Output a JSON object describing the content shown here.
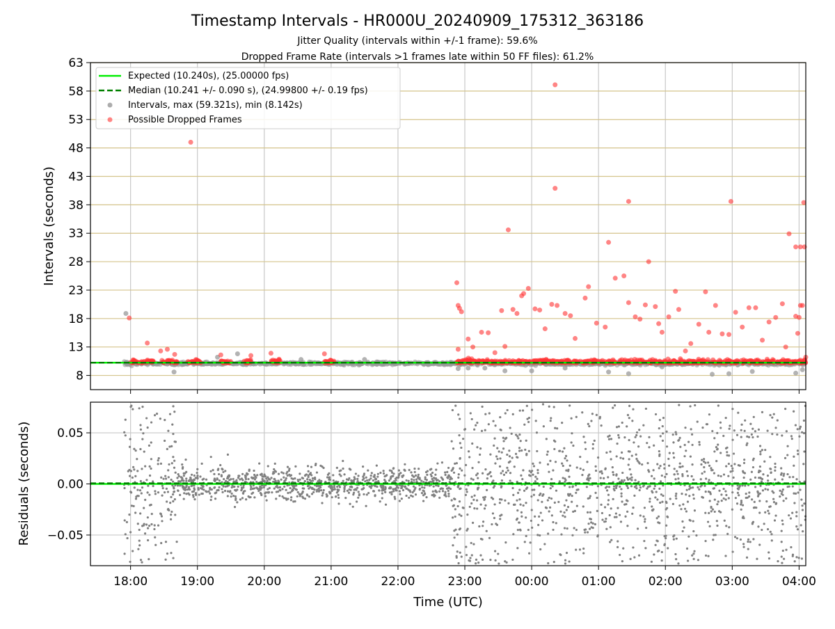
{
  "figure": {
    "title": "Timestamp Intervals - HR000U_20240909_175312_363186",
    "subtitle1": "Jitter Quality (intervals within +/-1 frame): 59.6%",
    "subtitle2": "Dropped Frame Rate (intervals >1 frames late within 50 FF files): 61.2%"
  },
  "chart_data": [
    {
      "type": "scatter",
      "title": "Timestamp Intervals - HR000U_20240909_175312_363186",
      "xlabel": "",
      "ylabel": "Intervals (seconds)",
      "xlim_hours": [
        17.4,
        28.1
      ],
      "ylim": [
        5.5,
        63
      ],
      "yticks": [
        8,
        13,
        18,
        23,
        28,
        33,
        38,
        43,
        48,
        53,
        58,
        63
      ],
      "xticks_hours": [
        18,
        19,
        20,
        21,
        22,
        23,
        24,
        25,
        26,
        27,
        28
      ],
      "xtick_labels": [
        "18:00",
        "19:00",
        "20:00",
        "21:00",
        "22:00",
        "23:00",
        "00:00",
        "01:00",
        "02:00",
        "03:00",
        "04:00"
      ],
      "grid": true,
      "legend_position": "top-left",
      "colors": {
        "expected": "#00ee00",
        "median": "#008000",
        "intervals": "#999999",
        "dropped": "#ff3333",
        "hgrid": "#d4c38a",
        "vgrid": "#c8c8c8"
      },
      "legend": [
        {
          "label": "Expected (10.240s), (25.00000 fps)",
          "kind": "solid-line",
          "color": "#00ee00"
        },
        {
          "label": "Median (10.241 +/- 0.090 s), (24.99800 +/- 0.19 fps)",
          "kind": "dashed-line",
          "color": "#008000"
        },
        {
          "label": "Intervals, max (59.321s), min (8.142s)",
          "kind": "marker",
          "color": "#999999"
        },
        {
          "label": "Possible Dropped Frames",
          "kind": "marker",
          "color": "#ff3333"
        }
      ],
      "expected_interval": 10.24,
      "median_interval": 10.241,
      "series": [
        {
          "name": "Intervals, max (59.321s), min (8.142s)",
          "points": [
            [
              17.93,
              18.9
            ],
            [
              18.55,
              10.0
            ],
            [
              18.65,
              8.6
            ],
            [
              19.3,
              11.2
            ],
            [
              19.6,
              11.8
            ],
            [
              20.3,
              10.2
            ],
            [
              20.55,
              10.8
            ],
            [
              21.5,
              10.8
            ],
            [
              22.9,
              9.2
            ],
            [
              23.05,
              9.3
            ],
            [
              23.3,
              9.3
            ],
            [
              23.6,
              8.8
            ],
            [
              24.0,
              8.8
            ],
            [
              24.5,
              9.3
            ],
            [
              25.15,
              8.6
            ],
            [
              25.45,
              8.3
            ],
            [
              25.95,
              9.5
            ],
            [
              26.7,
              8.2
            ],
            [
              26.95,
              8.3
            ],
            [
              27.3,
              8.7
            ],
            [
              27.95,
              8.4
            ],
            [
              28.05,
              9.0
            ]
          ]
        },
        {
          "name": "Possible Dropped Frames",
          "points": [
            [
              17.98,
              18.1
            ],
            [
              18.25,
              13.7
            ],
            [
              18.45,
              12.3
            ],
            [
              18.55,
              12.6
            ],
            [
              18.66,
              11.7
            ],
            [
              18.9,
              49.0
            ],
            [
              19.35,
              11.6
            ],
            [
              19.7,
              10.5
            ],
            [
              19.8,
              11.5
            ],
            [
              20.1,
              11.9
            ],
            [
              20.9,
              11.8
            ],
            [
              22.88,
              24.3
            ],
            [
              22.9,
              20.3
            ],
            [
              22.92,
              19.8
            ],
            [
              22.95,
              19.2
            ],
            [
              22.9,
              12.6
            ],
            [
              23.05,
              14.4
            ],
            [
              23.12,
              13.0
            ],
            [
              23.25,
              15.6
            ],
            [
              23.35,
              15.5
            ],
            [
              23.45,
              12.0
            ],
            [
              23.55,
              19.4
            ],
            [
              23.6,
              13.1
            ],
            [
              23.65,
              33.6
            ],
            [
              23.72,
              19.6
            ],
            [
              23.78,
              18.9
            ],
            [
              23.85,
              22.0
            ],
            [
              23.88,
              22.4
            ],
            [
              23.95,
              23.3
            ],
            [
              24.05,
              19.7
            ],
            [
              24.12,
              19.5
            ],
            [
              24.2,
              16.2
            ],
            [
              24.3,
              20.5
            ],
            [
              24.35,
              59.1
            ],
            [
              24.35,
              40.9
            ],
            [
              24.38,
              20.3
            ],
            [
              24.5,
              18.9
            ],
            [
              24.58,
              18.5
            ],
            [
              24.65,
              14.5
            ],
            [
              24.8,
              21.6
            ],
            [
              24.85,
              23.6
            ],
            [
              24.97,
              17.2
            ],
            [
              25.1,
              16.5
            ],
            [
              25.15,
              31.4
            ],
            [
              25.25,
              25.1
            ],
            [
              25.38,
              25.5
            ],
            [
              25.45,
              38.6
            ],
            [
              25.45,
              20.8
            ],
            [
              25.55,
              18.3
            ],
            [
              25.62,
              17.9
            ],
            [
              25.7,
              20.4
            ],
            [
              25.75,
              28.0
            ],
            [
              25.85,
              20.1
            ],
            [
              25.9,
              17.1
            ],
            [
              25.95,
              15.6
            ],
            [
              26.05,
              18.3
            ],
            [
              26.15,
              22.8
            ],
            [
              26.2,
              19.6
            ],
            [
              26.3,
              12.3
            ],
            [
              26.38,
              13.6
            ],
            [
              26.5,
              17.0
            ],
            [
              26.6,
              22.7
            ],
            [
              26.65,
              15.6
            ],
            [
              26.75,
              20.3
            ],
            [
              26.85,
              15.3
            ],
            [
              26.95,
              15.2
            ],
            [
              26.98,
              38.6
            ],
            [
              27.05,
              19.1
            ],
            [
              27.15,
              16.5
            ],
            [
              27.25,
              19.9
            ],
            [
              27.35,
              19.9
            ],
            [
              27.45,
              14.2
            ],
            [
              27.55,
              17.4
            ],
            [
              27.65,
              18.2
            ],
            [
              27.75,
              20.6
            ],
            [
              27.8,
              13.0
            ],
            [
              27.85,
              32.9
            ],
            [
              27.95,
              18.4
            ],
            [
              28.0,
              18.2
            ],
            [
              28.02,
              20.3
            ],
            [
              27.98,
              15.4
            ],
            [
              27.95,
              30.6
            ],
            [
              28.02,
              30.6
            ],
            [
              28.08,
              30.6
            ],
            [
              28.07,
              38.4
            ],
            [
              28.05,
              20.3
            ],
            [
              28.1,
              11.2
            ]
          ]
        }
      ]
    },
    {
      "type": "scatter",
      "xlabel": "Time (UTC)",
      "ylabel": "Residuals (seconds)",
      "xlim_hours": [
        17.4,
        28.1
      ],
      "ylim": [
        -0.08,
        0.08
      ],
      "yticks": [
        -0.05,
        0.0,
        0.05
      ],
      "ytick_labels": [
        "−0.05",
        "0.00",
        "0.05"
      ],
      "xticks_hours": [
        18,
        19,
        20,
        21,
        22,
        23,
        24,
        25,
        26,
        27,
        28
      ],
      "xtick_labels": [
        "18:00",
        "19:00",
        "20:00",
        "21:00",
        "22:00",
        "23:00",
        "00:00",
        "01:00",
        "02:00",
        "03:00",
        "04:00"
      ],
      "grid": true,
      "colors": {
        "points": "#808080",
        "zero_line": "#00ee00",
        "median_line": "#008000",
        "grid": "#c8c8c8"
      },
      "series": [
        {
          "name": "Residuals",
          "note_values": "residual spread approx +/-0.02 s 18:45-22:45 UTC, up to +/-0.08 s at the start and after 23:00 UTC",
          "spread_segments": [
            {
              "start_hours": 17.9,
              "end_hours": 18.7,
              "spread": 0.08
            },
            {
              "start_hours": 18.7,
              "end_hours": 22.8,
              "spread": 0.02
            },
            {
              "start_hours": 22.8,
              "end_hours": 28.1,
              "spread": 0.08
            }
          ]
        }
      ]
    }
  ]
}
